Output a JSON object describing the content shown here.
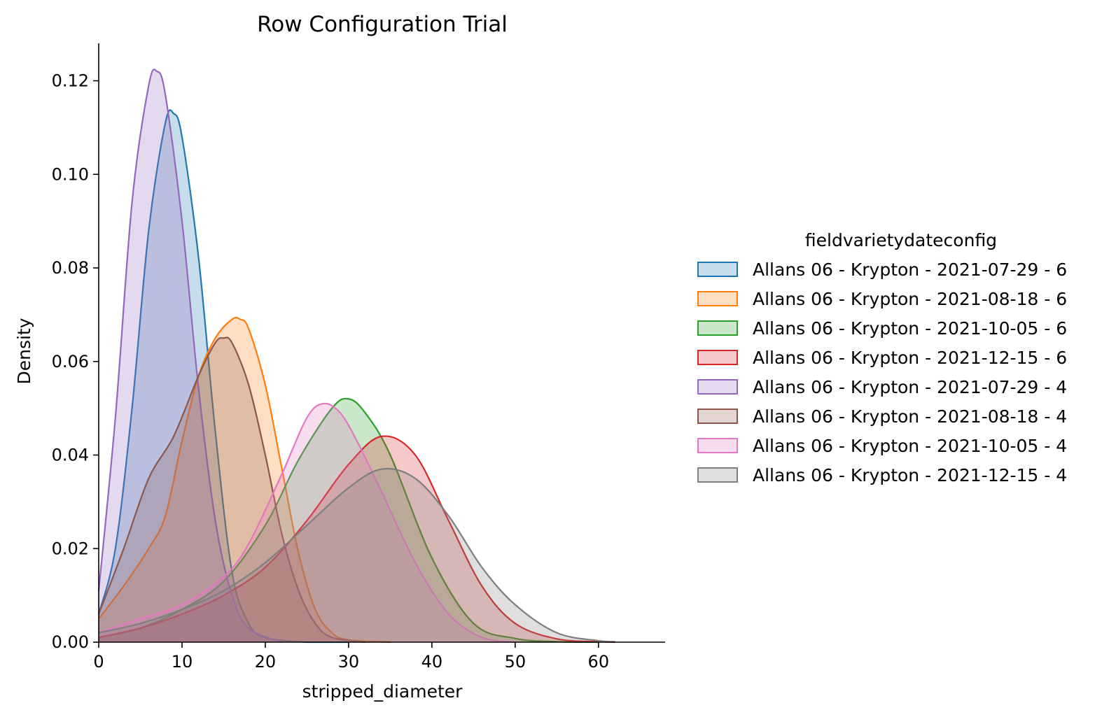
{
  "chart_data": {
    "type": "area",
    "title": "Row Configuration Trial",
    "xlabel": "stripped_diameter",
    "ylabel": "Density",
    "xlim": [
      0,
      68
    ],
    "ylim": [
      0,
      0.128
    ],
    "x_ticks": [
      0,
      10,
      20,
      30,
      40,
      50,
      60
    ],
    "y_ticks": [
      0.0,
      0.02,
      0.04,
      0.06,
      0.08,
      0.1,
      0.12
    ],
    "y_tick_labels": [
      "0.00",
      "0.02",
      "0.04",
      "0.06",
      "0.08",
      "0.10",
      "0.12"
    ],
    "grid": false,
    "legend": {
      "title": "fieldvarietydateconfig",
      "placement": "right"
    },
    "series": [
      {
        "name": "Allans 06 - Krypton - 2021-07-29 - 6",
        "color": "#1f77b4",
        "x": [
          0,
          2,
          4,
          6,
          8,
          9,
          10,
          12,
          14,
          16,
          18,
          20,
          25,
          30
        ],
        "y": [
          0.006,
          0.02,
          0.05,
          0.088,
          0.111,
          0.113,
          0.108,
          0.082,
          0.045,
          0.015,
          0.004,
          0.001,
          0,
          0
        ]
      },
      {
        "name": "Allans 06 - Krypton - 2021-08-18 - 6",
        "color": "#ff7f0e",
        "x": [
          0,
          3,
          6,
          8,
          10,
          12,
          14,
          16,
          17,
          18,
          20,
          22,
          24,
          26,
          28,
          30,
          35
        ],
        "y": [
          0.005,
          0.012,
          0.02,
          0.027,
          0.043,
          0.057,
          0.065,
          0.069,
          0.069,
          0.067,
          0.055,
          0.037,
          0.019,
          0.007,
          0.002,
          0.0005,
          0
        ]
      },
      {
        "name": "Allans 06 - Krypton - 2021-10-05 - 6",
        "color": "#2ca02c",
        "x": [
          0,
          5,
          10,
          15,
          20,
          24,
          28,
          30,
          32,
          35,
          40,
          45,
          50,
          55,
          60
        ],
        "y": [
          0.001,
          0.003,
          0.007,
          0.013,
          0.025,
          0.039,
          0.05,
          0.052,
          0.049,
          0.04,
          0.018,
          0.004,
          0.0008,
          0.0001,
          0
        ]
      },
      {
        "name": "Allans 06 - Krypton - 2021-12-15 - 6",
        "color": "#d62728",
        "x": [
          0,
          5,
          10,
          15,
          20,
          25,
          30,
          34,
          38,
          42,
          46,
          50,
          55,
          60,
          62
        ],
        "y": [
          0.001,
          0.003,
          0.006,
          0.01,
          0.016,
          0.026,
          0.038,
          0.044,
          0.04,
          0.026,
          0.012,
          0.004,
          0.0007,
          0.0001,
          0
        ]
      },
      {
        "name": "Allans 06 - Krypton - 2021-07-29 - 4",
        "color": "#9467bd",
        "x": [
          0,
          2,
          4,
          6,
          7,
          8,
          10,
          12,
          14,
          16,
          18,
          22
        ],
        "y": [
          0.011,
          0.048,
          0.094,
          0.119,
          0.122,
          0.117,
          0.09,
          0.054,
          0.026,
          0.01,
          0.003,
          0
        ]
      },
      {
        "name": "Allans 06 - Krypton - 2021-08-18 - 4",
        "color": "#8c564b",
        "x": [
          0,
          3,
          6,
          9,
          12,
          14,
          15,
          16,
          18,
          20,
          22,
          24,
          26,
          28,
          32
        ],
        "y": [
          0.006,
          0.02,
          0.035,
          0.044,
          0.057,
          0.064,
          0.065,
          0.064,
          0.055,
          0.04,
          0.023,
          0.011,
          0.004,
          0.001,
          0
        ]
      },
      {
        "name": "Allans 06 - Krypton - 2021-10-05 - 4",
        "color": "#e377c2",
        "x": [
          0,
          5,
          10,
          15,
          18,
          22,
          25,
          27,
          29,
          31,
          34,
          38,
          42,
          46,
          50
        ],
        "y": [
          0.002,
          0.005,
          0.008,
          0.014,
          0.021,
          0.036,
          0.048,
          0.051,
          0.049,
          0.043,
          0.032,
          0.017,
          0.006,
          0.001,
          0
        ]
      },
      {
        "name": "Allans 06 - Krypton - 2021-12-15 - 4",
        "color": "#7f7f7f",
        "x": [
          0,
          5,
          10,
          15,
          20,
          25,
          30,
          34,
          38,
          42,
          46,
          50,
          55,
          60,
          62
        ],
        "y": [
          0.002,
          0.004,
          0.007,
          0.011,
          0.017,
          0.025,
          0.033,
          0.037,
          0.035,
          0.027,
          0.016,
          0.008,
          0.002,
          0.0003,
          0.0001
        ]
      }
    ]
  }
}
